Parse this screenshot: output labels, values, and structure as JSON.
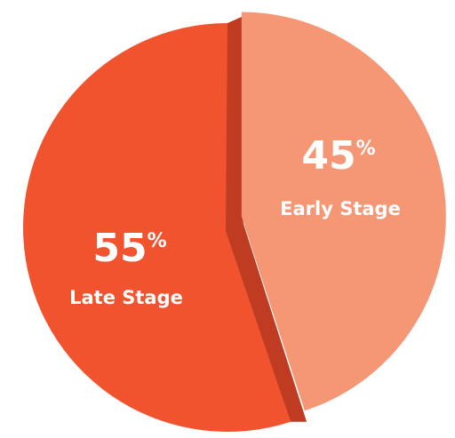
{
  "chart_data": {
    "type": "pie",
    "title": "",
    "slices": [
      {
        "label": "Late Stage",
        "value": 55,
        "display": "55",
        "unit": "%",
        "color": "#F1532E",
        "edge_color": "#BF3C22"
      },
      {
        "label": "Early Stage",
        "value": 45,
        "display": "45",
        "unit": "%",
        "color": "#F59774",
        "edge_color": "#BF3C22"
      }
    ],
    "legend": "none",
    "exploded_slice": "Early Stage",
    "style": "3d-wedge"
  }
}
